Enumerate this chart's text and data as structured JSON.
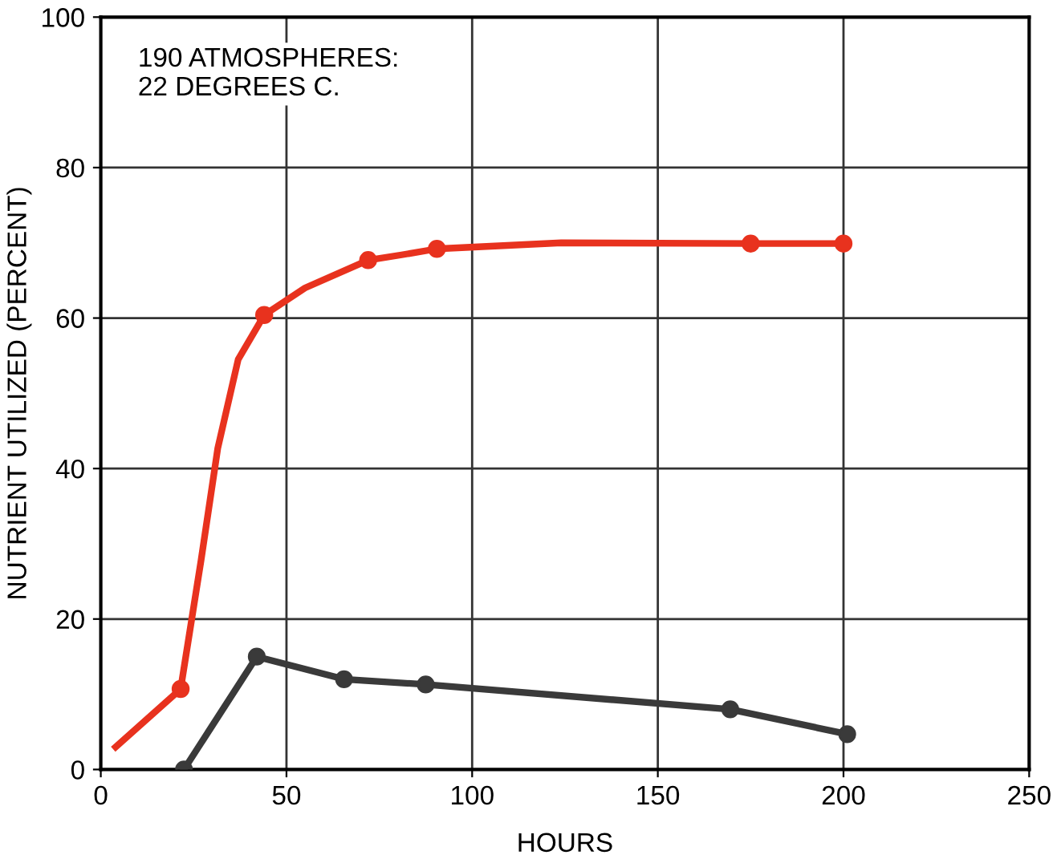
{
  "chart_data": {
    "type": "line",
    "xlabel": "HOURS",
    "ylabel": "NUTRIENT UTILIZED (PERCENT)",
    "xlim": [
      0,
      250
    ],
    "xticks": [
      0,
      50,
      100,
      150,
      200,
      250
    ],
    "ylim": [
      0,
      100
    ],
    "yticks": [
      0,
      20,
      40,
      60,
      80,
      100
    ],
    "grid": true,
    "annotations": [
      "190 ATMOSPHERES:\n22 DEGREES C."
    ],
    "series": [
      {
        "color": "#e8321e",
        "marker": "none",
        "x": [
          4,
          21.5,
          27,
          31.5,
          37,
          44,
          55,
          72,
          81,
          90.5,
          124,
          175,
          200
        ],
        "values": [
          3,
          10.7,
          27.8,
          42.7,
          54.5,
          60.4,
          64,
          67.7,
          68.4,
          69.2,
          70,
          69.9,
          69.9
        ]
      },
      {
        "type": "scatter",
        "color": "#e8321e",
        "marker": "circle",
        "x": [
          21.5,
          44,
          72,
          90.5,
          175,
          200
        ],
        "values": [
          10.7,
          60.4,
          67.7,
          69.2,
          69.9,
          69.9
        ]
      },
      {
        "color": "#3a3a3a",
        "marker": "circle",
        "x": [
          22.4,
          42,
          65.5,
          87.5,
          169.5,
          201
        ],
        "values": [
          0,
          15,
          12,
          11.3,
          8,
          4.7
        ]
      }
    ]
  }
}
